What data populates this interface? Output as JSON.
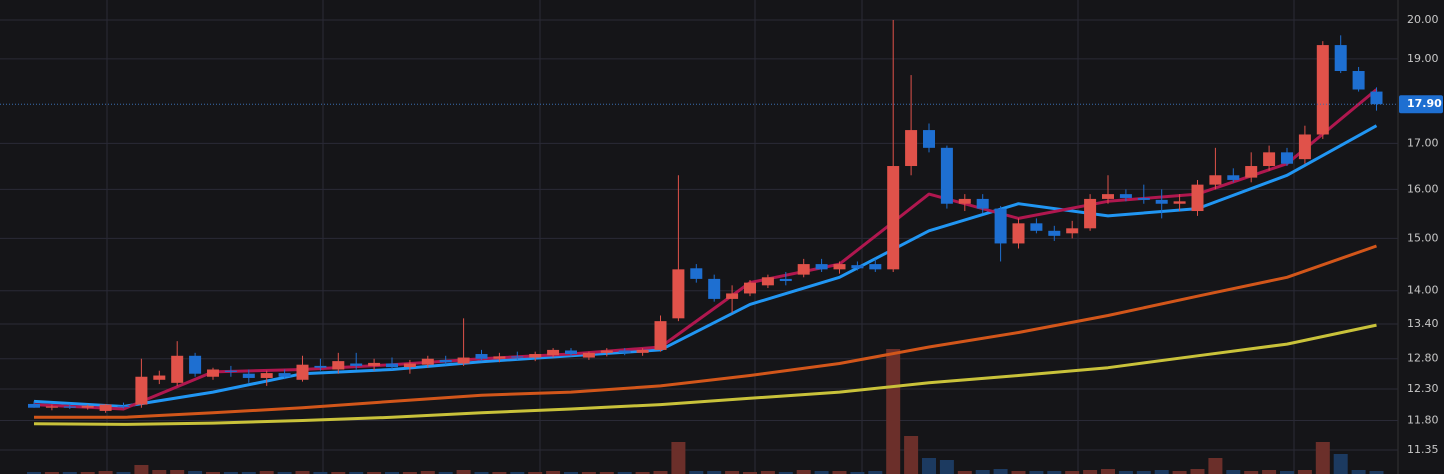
{
  "chart_data": {
    "type": "candlestick",
    "log_scale": true,
    "grid": true,
    "ylim": [
      11.35,
      20
    ],
    "yticks": [
      {
        "value": 20,
        "label": "20.00"
      },
      {
        "value": 19,
        "label": "19.00"
      },
      {
        "value": 17,
        "label": "17.00"
      },
      {
        "value": 16,
        "label": "16.00"
      },
      {
        "value": 15,
        "label": "15.00"
      },
      {
        "value": 14,
        "label": "14.00"
      },
      {
        "value": 13.4,
        "label": "13.40"
      },
      {
        "value": 12.8,
        "label": "12.80"
      },
      {
        "value": 12.3,
        "label": "12.30"
      },
      {
        "value": 11.8,
        "label": "11.80"
      },
      {
        "value": 11.35,
        "label": "11.35"
      }
    ],
    "last_price": {
      "value": 17.9,
      "label": "17.90"
    },
    "up_color": "#e0524a",
    "down_color": "#1e6fd1",
    "up_volume_color": "#6b2f2a",
    "down_volume_color": "#1c3a60",
    "open": [
      12.06,
      12.0,
      12.02,
      12.0,
      11.95,
      12.03,
      12.05,
      12.45,
      12.4,
      12.85,
      12.5,
      12.6,
      12.55,
      12.48,
      12.56,
      12.45,
      12.68,
      12.62,
      12.72,
      12.68,
      12.72,
      12.66,
      12.7,
      12.78,
      12.72,
      12.88,
      12.8,
      12.84,
      12.82,
      12.86,
      12.94,
      12.82,
      12.9,
      12.94,
      12.9,
      12.95,
      13.5,
      14.42,
      14.22,
      13.85,
      13.95,
      14.1,
      14.22,
      14.3,
      14.5,
      14.4,
      14.48,
      14.5,
      14.4,
      16.5,
      17.3,
      16.9,
      15.7,
      15.8,
      15.6,
      14.9,
      15.3,
      15.15,
      15.1,
      15.2,
      15.8,
      15.9,
      15.82,
      15.78,
      15.7,
      15.55,
      16.1,
      16.3,
      16.25,
      16.5,
      16.8,
      16.65,
      17.2,
      19.35,
      18.7,
      18.2
    ],
    "high": [
      12.1,
      12.05,
      12.06,
      12.05,
      12.06,
      12.08,
      12.8,
      12.6,
      13.1,
      12.9,
      12.65,
      12.68,
      12.62,
      12.6,
      12.62,
      12.85,
      12.8,
      12.9,
      12.9,
      12.8,
      12.82,
      12.78,
      12.85,
      12.85,
      13.5,
      12.95,
      12.9,
      12.92,
      12.92,
      12.98,
      12.98,
      12.92,
      12.98,
      12.98,
      12.98,
      13.55,
      16.3,
      14.5,
      14.3,
      14.1,
      14.2,
      14.3,
      14.35,
      14.6,
      14.6,
      14.55,
      14.55,
      14.6,
      20.0,
      18.6,
      17.45,
      16.95,
      15.9,
      15.9,
      15.65,
      15.4,
      15.4,
      15.25,
      15.35,
      15.9,
      16.3,
      16.0,
      16.1,
      16.0,
      15.9,
      16.2,
      16.9,
      16.45,
      16.8,
      16.95,
      16.9,
      17.4,
      19.45,
      19.6,
      18.8,
      18.3
    ],
    "low": [
      12.0,
      11.96,
      11.98,
      11.97,
      11.92,
      11.99,
      12.0,
      12.38,
      12.35,
      12.5,
      12.45,
      12.5,
      12.4,
      12.35,
      12.46,
      12.42,
      12.6,
      12.55,
      12.62,
      12.6,
      12.62,
      12.55,
      12.65,
      12.7,
      12.68,
      12.76,
      12.74,
      12.78,
      12.76,
      12.82,
      12.84,
      12.78,
      12.84,
      12.86,
      12.85,
      12.92,
      13.45,
      14.15,
      13.8,
      13.6,
      13.9,
      14.05,
      14.1,
      14.25,
      14.35,
      14.32,
      14.38,
      14.35,
      14.35,
      16.3,
      16.8,
      15.6,
      15.55,
      15.5,
      14.55,
      14.8,
      15.1,
      14.95,
      15.0,
      15.15,
      15.7,
      15.75,
      15.7,
      15.4,
      15.55,
      15.45,
      16.0,
      16.15,
      16.15,
      16.4,
      16.5,
      16.55,
      17.1,
      18.65,
      18.2,
      17.75
    ],
    "close": [
      12.0,
      12.02,
      12.0,
      12.03,
      12.05,
      12.01,
      12.5,
      12.52,
      12.85,
      12.55,
      12.62,
      12.58,
      12.48,
      12.56,
      12.5,
      12.7,
      12.65,
      12.76,
      12.68,
      12.73,
      12.66,
      12.72,
      12.8,
      12.74,
      12.82,
      12.8,
      12.84,
      12.82,
      12.88,
      12.95,
      12.88,
      12.9,
      12.94,
      12.9,
      12.95,
      13.45,
      14.4,
      14.22,
      13.85,
      13.95,
      14.15,
      14.25,
      14.18,
      14.5,
      14.4,
      14.5,
      14.42,
      14.4,
      16.5,
      17.3,
      16.9,
      15.7,
      15.8,
      15.6,
      14.9,
      15.3,
      15.15,
      15.05,
      15.2,
      15.8,
      15.9,
      15.82,
      15.78,
      15.7,
      15.75,
      16.1,
      16.3,
      16.2,
      16.5,
      16.8,
      16.55,
      17.2,
      19.35,
      18.7,
      18.25,
      17.9
    ],
    "volume": [
      2,
      2,
      2,
      2,
      3,
      2,
      9,
      4,
      4,
      3,
      2,
      2,
      2,
      3,
      2,
      3,
      2,
      2,
      2,
      2,
      2,
      2,
      3,
      2,
      4,
      2,
      2,
      2,
      2,
      3,
      2,
      2,
      2,
      2,
      2,
      3,
      32,
      3,
      3,
      3,
      2,
      3,
      2,
      4,
      3,
      3,
      2,
      3,
      125,
      38,
      16,
      14,
      3,
      4,
      5,
      3,
      3,
      3,
      3,
      4,
      5,
      3,
      3,
      4,
      3,
      5,
      16,
      4,
      3,
      4,
      3,
      4,
      32,
      20,
      4,
      3
    ],
    "ma_index": [
      0,
      5,
      10,
      15,
      20,
      25,
      30,
      35,
      40,
      45,
      50,
      55,
      60,
      65,
      70,
      75
    ],
    "lines": [
      {
        "color": "#2196f3",
        "values": [
          12.1,
          12.02,
          12.25,
          12.55,
          12.62,
          12.75,
          12.85,
          12.95,
          13.75,
          14.25,
          15.15,
          15.7,
          15.45,
          15.6,
          16.3,
          17.4
        ]
      },
      {
        "color": "#b0174f",
        "values": [
          12.05,
          11.98,
          12.58,
          12.62,
          12.7,
          12.8,
          12.88,
          13.0,
          14.15,
          14.5,
          15.9,
          15.4,
          15.75,
          15.9,
          16.55,
          18.25
        ]
      },
      {
        "color": "#d2561a",
        "values": [
          11.85,
          11.85,
          11.92,
          12.0,
          12.1,
          12.2,
          12.25,
          12.35,
          12.52,
          12.72,
          13.0,
          13.25,
          13.55,
          13.9,
          14.25,
          14.85
        ]
      },
      {
        "color": "#c9c23a",
        "values": [
          11.75,
          11.74,
          11.76,
          11.8,
          11.85,
          11.92,
          11.98,
          12.05,
          12.15,
          12.25,
          12.4,
          12.52,
          12.65,
          12.85,
          13.05,
          13.38
        ]
      }
    ]
  }
}
